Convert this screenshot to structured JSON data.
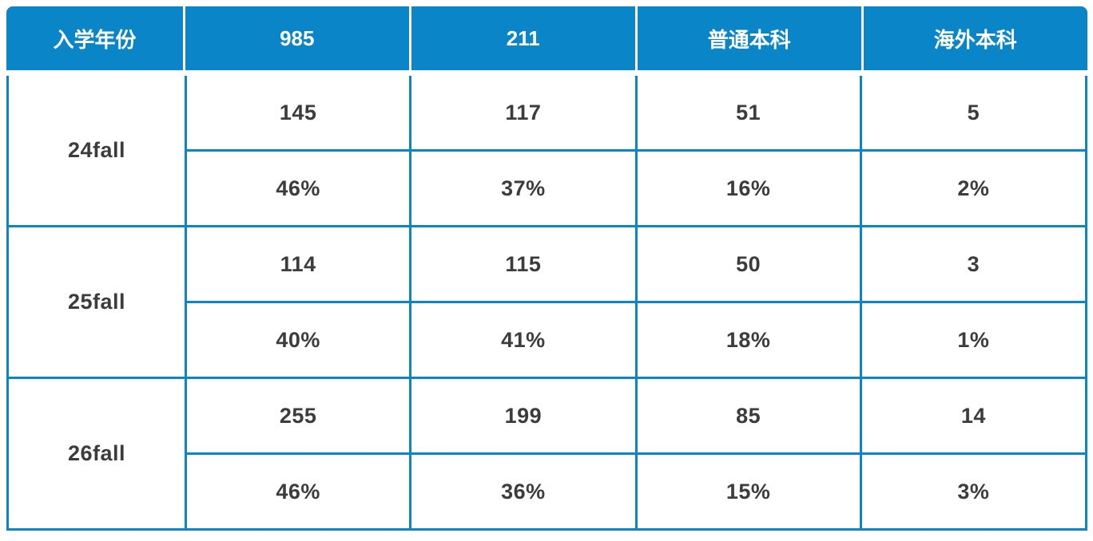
{
  "accent_color": "#0A85C7",
  "text_color": "#3C3C3E",
  "header_text_color": "#FFFFFF",
  "table": {
    "columns": [
      "入学年份",
      "985",
      "211",
      "普通本科",
      "海外本科"
    ],
    "row_groups": [
      {
        "label": "24fall",
        "counts": [
          "145",
          "117",
          "51",
          "5"
        ],
        "percents": [
          "46%",
          "37%",
          "16%",
          "2%"
        ]
      },
      {
        "label": "25fall",
        "counts": [
          "114",
          "115",
          "50",
          "3"
        ],
        "percents": [
          "40%",
          "41%",
          "18%",
          "1%"
        ]
      },
      {
        "label": "26fall",
        "counts": [
          "255",
          "199",
          "85",
          "14"
        ],
        "percents": [
          "46%",
          "36%",
          "15%",
          "3%"
        ]
      }
    ]
  },
  "chart_data": {
    "type": "table",
    "title": "",
    "columns": [
      "入学年份",
      "985",
      "211",
      "普通本科",
      "海外本科"
    ],
    "rows": [
      [
        "24fall",
        "145",
        "117",
        "51",
        "5"
      ],
      [
        "24fall",
        "46%",
        "37%",
        "16%",
        "2%"
      ],
      [
        "25fall",
        "114",
        "115",
        "50",
        "3"
      ],
      [
        "25fall",
        "40%",
        "41%",
        "18%",
        "1%"
      ],
      [
        "26fall",
        "255",
        "199",
        "85",
        "14"
      ],
      [
        "26fall",
        "46%",
        "36%",
        "15%",
        "3%"
      ]
    ],
    "notes": "Each 入学年份 group has a count row and a percentage row; label cell spans both rows."
  }
}
